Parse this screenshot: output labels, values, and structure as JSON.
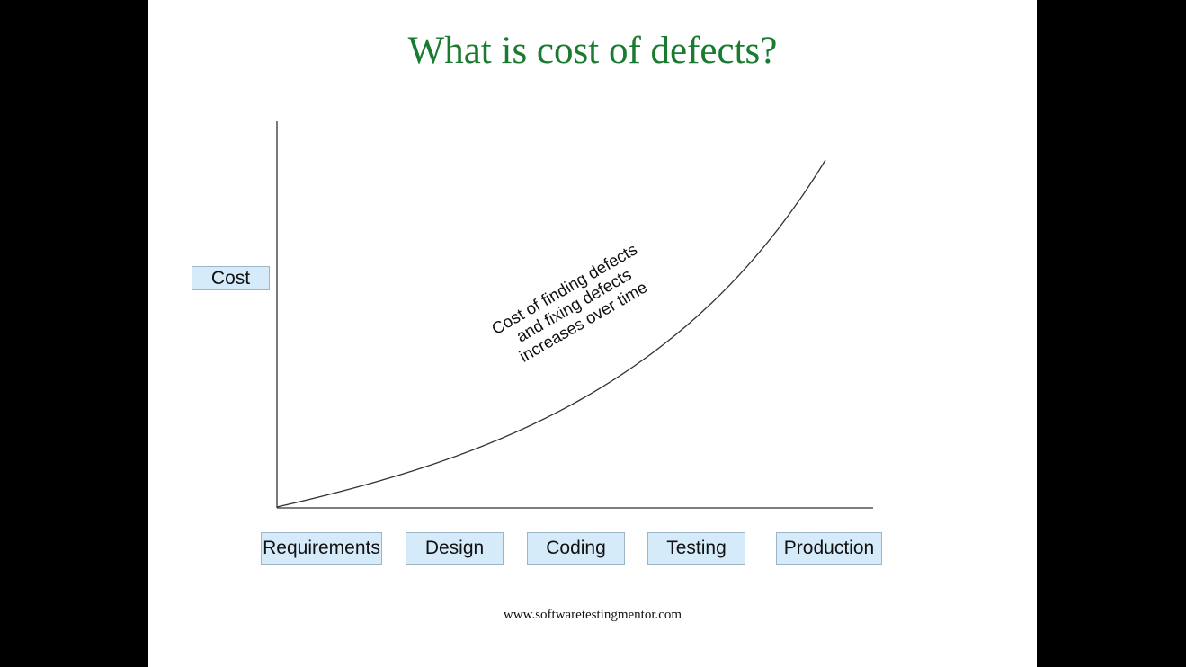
{
  "slide": {
    "title": "What is cost of defects?",
    "y_axis_label": "Cost",
    "phases": [
      "Requirements",
      "Design",
      "Coding",
      "Testing",
      "Production"
    ],
    "curve_annotation": [
      "Cost of finding defects",
      "and fixing defects",
      "increases over time"
    ],
    "footer": "www.softwaretestingmentor.com"
  },
  "colors": {
    "title": "#1a7a30",
    "box_fill": "#d6ebfa",
    "box_border": "#9cb6c8",
    "background": "#ffffff",
    "letterbox": "#000000"
  }
}
